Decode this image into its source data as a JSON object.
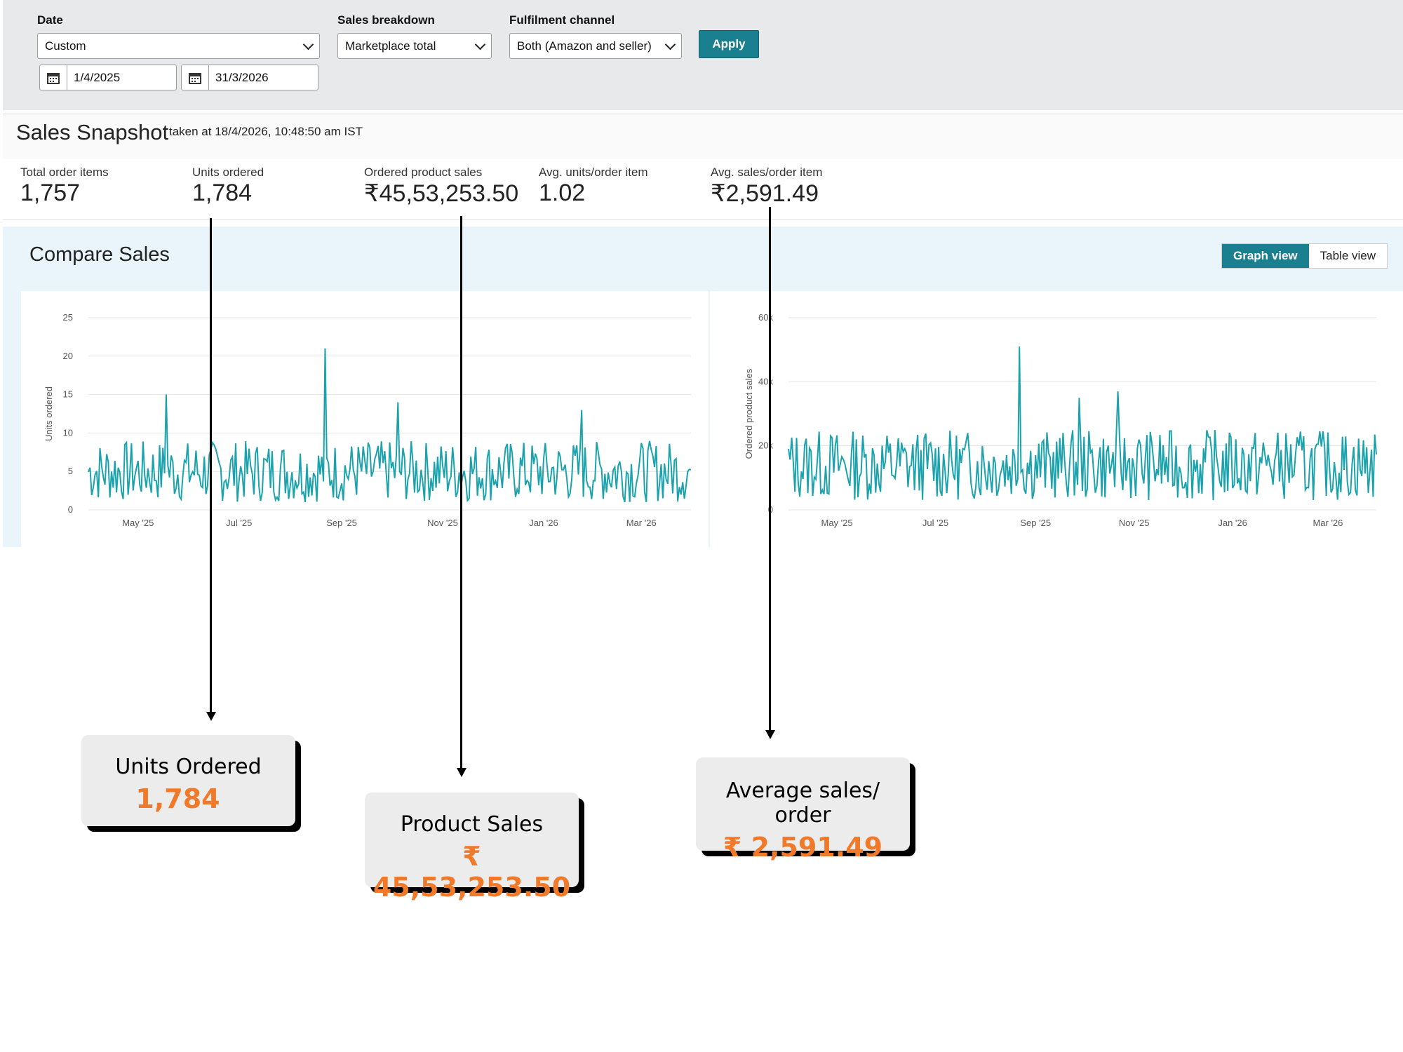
{
  "filters": {
    "date_label": "Date",
    "date_value": "Custom",
    "start_date": "1/4/2025",
    "end_date": "31/3/2026",
    "breakdown_label": "Sales breakdown",
    "breakdown_value": "Marketplace total",
    "channel_label": "Fulfilment channel",
    "channel_value": "Both (Amazon and seller)",
    "apply_label": "Apply"
  },
  "snapshot": {
    "title": "Sales Snapshot",
    "subtitle": "taken at 18/4/2026, 10:48:50 am IST",
    "metrics": [
      {
        "label": "Total order items",
        "value": "1,757"
      },
      {
        "label": "Units ordered",
        "value": "1,784"
      },
      {
        "label": "Ordered product sales",
        "value": "₹45,53,253.50"
      },
      {
        "label": "Avg. units/order item",
        "value": "1.02"
      },
      {
        "label": "Avg. sales/order item",
        "value": "₹2,591.49"
      }
    ]
  },
  "compare": {
    "title": "Compare Sales",
    "graph_view_label": "Graph view",
    "table_view_label": "Table view"
  },
  "chart_data": [
    {
      "type": "line",
      "ylabel": "Units ordered",
      "xlabel": "",
      "ylim": [
        0,
        25
      ],
      "yticks": [
        "0",
        "5",
        "10",
        "15",
        "20",
        "25"
      ],
      "xticks": [
        "May '25",
        "Jul '25",
        "Sep '25",
        "Nov '25",
        "Jan '26",
        "Mar '26"
      ],
      "x_range": [
        "2025-04-01",
        "2026-03-31"
      ],
      "color": "#1ba3ad",
      "grid": true,
      "peaks": [
        {
          "x": "2025-05-18",
          "y": 15
        },
        {
          "x": "2025-08-22",
          "y": 21
        },
        {
          "x": "2025-10-05",
          "y": 14
        },
        {
          "x": "2026-01-24",
          "y": 13
        }
      ],
      "typical_range": [
        1,
        9
      ]
    },
    {
      "type": "line",
      "ylabel": "Ordered product sales",
      "xlabel": "",
      "ylim": [
        0,
        60000
      ],
      "yticks": [
        "0",
        "20k",
        "40k",
        "60k"
      ],
      "xticks": [
        "May '25",
        "Jul '25",
        "Sep '25",
        "Nov '25",
        "Jan '26",
        "Mar '26"
      ],
      "x_range": [
        "2025-04-01",
        "2026-03-31"
      ],
      "color": "#1ba3ad",
      "grid": true,
      "peaks": [
        {
          "x": "2025-08-22",
          "y": 51000
        },
        {
          "x": "2025-10-22",
          "y": 37000
        },
        {
          "x": "2025-09-28",
          "y": 35000
        }
      ],
      "typical_range": [
        3000,
        25000
      ]
    }
  ],
  "annotations": [
    {
      "label": "Units Ordered",
      "value": "1,784"
    },
    {
      "label": "Product Sales",
      "value": "₹ 45,53,253.50"
    },
    {
      "label": "Average sales/ order",
      "value": "₹ 2,591.49"
    }
  ]
}
